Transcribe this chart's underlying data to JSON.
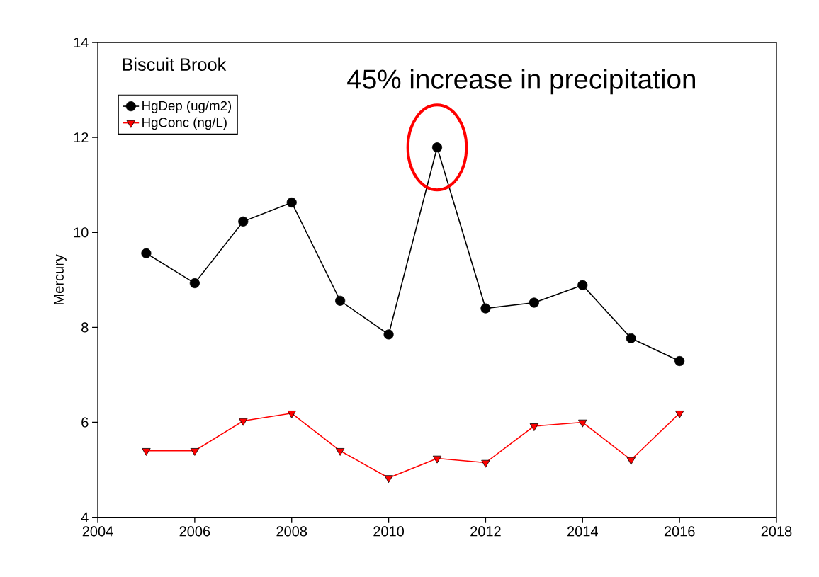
{
  "chart_data": {
    "type": "line",
    "title": "Biscuit Brook",
    "ylabel": "Mercury",
    "x": [
      2005,
      2006,
      2007,
      2008,
      2009,
      2010,
      2011,
      2012,
      2013,
      2014,
      2015,
      2016
    ],
    "series": [
      {
        "name": "HgDep (ug/m2)",
        "color": "#000000",
        "marker": "circle",
        "values": [
          9.56,
          8.93,
          10.23,
          10.63,
          8.56,
          7.85,
          11.79,
          8.4,
          8.52,
          8.89,
          7.77,
          7.29
        ]
      },
      {
        "name": "HgConc (ng/L)",
        "color": "#ff0000",
        "marker": "triangle",
        "values": [
          5.4,
          5.4,
          6.03,
          6.19,
          5.4,
          4.83,
          5.24,
          5.15,
          5.92,
          6.0,
          5.21,
          6.19
        ]
      }
    ],
    "xlim": [
      2004,
      2018
    ],
    "xticks": [
      2004,
      2006,
      2008,
      2010,
      2012,
      2014,
      2016,
      2018
    ],
    "ylim": [
      4,
      14
    ],
    "yticks": [
      4,
      6,
      8,
      10,
      12,
      14
    ],
    "annotations": [
      {
        "text": "45% increase in precipitation",
        "x": 2011,
        "y": 11.79
      }
    ],
    "legend": "top left",
    "line_style": "solid",
    "grid": false
  }
}
